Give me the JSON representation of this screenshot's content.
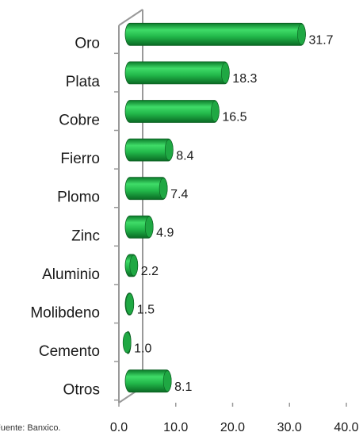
{
  "chart_data": {
    "type": "bar",
    "orientation": "horizontal",
    "categories": [
      "Oro",
      "Plata",
      "Cobre",
      "Fierro",
      "Plomo",
      "Zinc",
      "Aluminio",
      "Molibdeno",
      "Cemento",
      "Otros"
    ],
    "values": [
      31.7,
      18.3,
      16.5,
      8.4,
      7.4,
      4.9,
      2.2,
      1.5,
      1.0,
      8.1
    ],
    "value_labels": [
      "31.7",
      "18.3",
      "16.5",
      "8.4",
      "7.4",
      "4.9",
      "2.2",
      "1.5",
      "1.0",
      "8.1"
    ],
    "color": "#22b84a",
    "xlim": [
      0,
      40
    ],
    "xticks": [
      {
        "value": 0,
        "label": "0.0"
      },
      {
        "value": 10,
        "label": "10.0"
      },
      {
        "value": 20,
        "label": "20.0"
      },
      {
        "value": 30,
        "label": "30.0"
      },
      {
        "value": 40,
        "label": "40.0"
      }
    ],
    "source": "Fuente: Banxico."
  }
}
